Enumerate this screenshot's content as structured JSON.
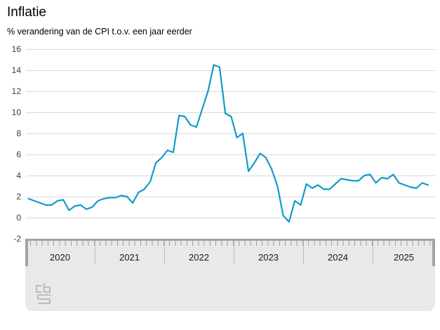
{
  "header": {
    "title": "Inflatie",
    "subtitle": "% verandering van de CPI t.o.v. een jaar eerder"
  },
  "footer": {
    "logo_name": "cbs-logo"
  },
  "chart_data": {
    "type": "line",
    "title": "Inflatie",
    "subtitle": "% verandering van de CPI t.o.v. een jaar eerder",
    "unit": "%",
    "frequency": "monthly",
    "x_start": "2020-01",
    "x_end": "2025-10",
    "x_years": [
      "2020",
      "2021",
      "2022",
      "2023",
      "2024",
      "2025"
    ],
    "ylim": [
      -2,
      16
    ],
    "yticks": [
      16,
      14,
      12,
      10,
      8,
      6,
      4,
      2,
      0,
      -2
    ],
    "grid": "horizontal",
    "legend": "none",
    "line_color": "#129bc9",
    "series": [
      {
        "name": "Inflatie (CPI, % t.o.v. een jaar eerder)",
        "values": [
          1.8,
          1.6,
          1.4,
          1.2,
          1.2,
          1.6,
          1.7,
          0.7,
          1.1,
          1.2,
          0.8,
          1.0,
          1.6,
          1.8,
          1.9,
          1.9,
          2.1,
          2.0,
          1.4,
          2.4,
          2.7,
          3.4,
          5.2,
          5.7,
          6.4,
          6.2,
          9.7,
          9.6,
          8.8,
          8.6,
          10.3,
          12.0,
          14.5,
          14.3,
          9.9,
          9.6,
          7.6,
          8.0,
          4.4,
          5.2,
          6.1,
          5.7,
          4.6,
          3.0,
          0.2,
          -0.4,
          1.6,
          1.2,
          3.2,
          2.8,
          3.1,
          2.7,
          2.7,
          3.2,
          3.7,
          3.6,
          3.5,
          3.5,
          4.0,
          4.1,
          3.3,
          3.8,
          3.7,
          4.1,
          3.3,
          3.1,
          2.9,
          2.8,
          3.3,
          3.1
        ]
      }
    ]
  }
}
